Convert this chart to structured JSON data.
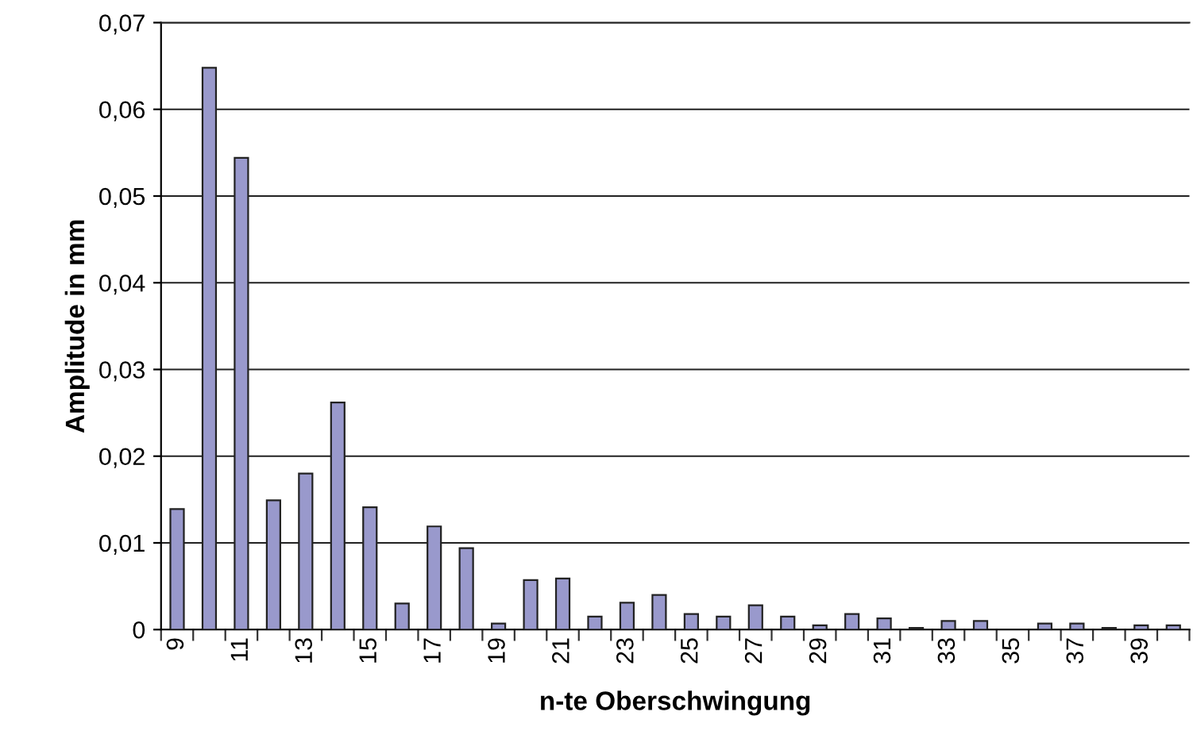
{
  "chart_data": {
    "type": "bar",
    "xlabel": "n-te Oberschwingung",
    "ylabel": "Amplitude in mm",
    "categories": [
      "9",
      null,
      "11",
      null,
      "13",
      null,
      "15",
      null,
      "17",
      null,
      "19",
      null,
      "21",
      null,
      "23",
      null,
      "25",
      null,
      "27",
      null,
      "29",
      null,
      "31",
      null,
      "33",
      null,
      "35",
      null,
      "37",
      null,
      "39",
      null
    ],
    "values": [
      0.0139,
      0.0648,
      0.0544,
      0.0149,
      0.018,
      0.0262,
      0.0141,
      0.003,
      0.0119,
      0.0094,
      0.0007,
      0.0057,
      0.0059,
      0.0015,
      0.0031,
      0.004,
      0.0018,
      0.0015,
      0.0028,
      0.0015,
      0.0005,
      0.0018,
      0.0013,
      0.0002,
      0.001,
      0.001,
      null,
      0.0007,
      0.0007,
      0.0002,
      0.0005,
      0.0005
    ],
    "color": "#9999cc",
    "ylim": [
      0,
      0.07
    ],
    "yticks": [
      {
        "value": 0,
        "label": "0"
      },
      {
        "value": 0.01,
        "label": "0,01"
      },
      {
        "value": 0.02,
        "label": "0,02"
      },
      {
        "value": 0.03,
        "label": "0,03"
      },
      {
        "value": 0.04,
        "label": "0,04"
      },
      {
        "value": 0.05,
        "label": "0,05"
      },
      {
        "value": 0.06,
        "label": "0,06"
      },
      {
        "value": 0.07,
        "label": "0,07"
      }
    ],
    "grid": "y",
    "legend": false
  }
}
